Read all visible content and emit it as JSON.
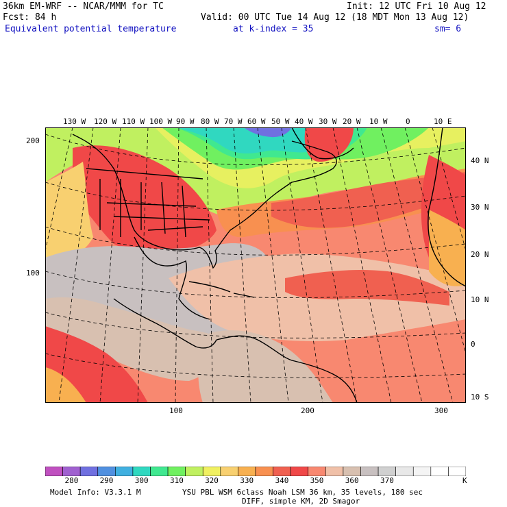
{
  "header": {
    "model": "36km EM-WRF -- NCAR/MMM for TC",
    "init": "Init: 12 UTC Fri 10 Aug 12",
    "fcst": "Fcst:   84 h",
    "valid": "Valid: 00 UTC Tue 14 Aug 12 (18 MDT Mon 13 Aug 12)",
    "field": "Equivalent potential temperature",
    "level": "at k-index =  35",
    "smooth": "sm= 6"
  },
  "lon_labels": [
    "130 W",
    "120 W",
    "110 W",
    "100 W",
    "90 W",
    "80 W",
    "70 W",
    "60 W",
    "50 W",
    "40 W",
    "30 W",
    "20 W",
    "10 W",
    "0",
    "10 E"
  ],
  "lat_labels": [
    "40 N",
    "30 N",
    "20 N",
    "10 N",
    "0",
    "10 S"
  ],
  "grid_y_labels": [
    "200",
    "100"
  ],
  "grid_x_labels": [
    "100",
    "200",
    "300"
  ],
  "colorbar": {
    "unit": "K",
    "labels": [
      "280",
      "290",
      "300",
      "310",
      "320",
      "330",
      "340",
      "350",
      "360",
      "370"
    ],
    "colors": [
      "#c050c0",
      "#a060d0",
      "#7070e0",
      "#5090e0",
      "#40b0e0",
      "#30d8c0",
      "#40e890",
      "#70f060",
      "#c0f060",
      "#f0f060",
      "#f8d070",
      "#f8b050",
      "#f89050",
      "#f06050",
      "#f04848",
      "#f88870",
      "#f0c0a8",
      "#d8c0b0",
      "#c8c0c0",
      "#d0d0d0",
      "#e8e8e8",
      "#f4f4f4",
      "#ffffff",
      "#ffffff"
    ]
  },
  "footer": {
    "model_info": "Model Info: V3.3.1 M",
    "physics": "YSU PBL  WSM 6class  Noah LSM  36 km,   35 levels,  180 sec",
    "diff": "DIFF, simple KM, 2D Smagor"
  }
}
